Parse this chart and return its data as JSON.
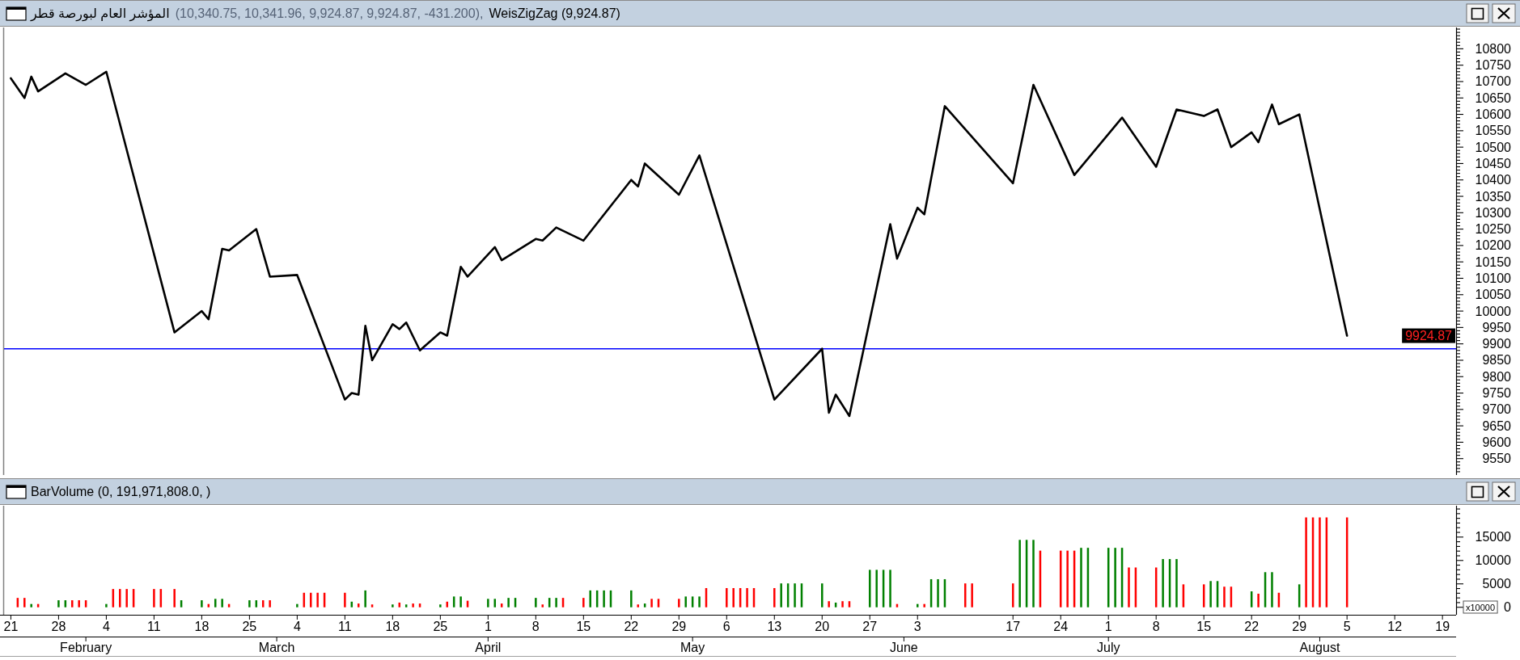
{
  "chart_data": [
    {
      "type": "line",
      "title": "المؤشر العام لبورصة قطر",
      "subtitle": "(10,340.75, 10,341.96, 9,924.87, 9,924.87, -431.200),",
      "series": [
        {
          "name": "WeisZigZag (9,924.87)",
          "color": "#000000",
          "x": [
            "--01-21",
            "--01-23",
            "--01-24",
            "--01-25",
            "--01-29",
            "--02-01",
            "--02-04",
            "--02-14",
            "--02-18",
            "--02-19",
            "--02-21",
            "--02-22",
            "--02-26",
            "--02-28",
            "--03-04",
            "--03-11",
            "--03-12",
            "--03-13",
            "--03-14",
            "--03-15",
            "--03-18",
            "--03-19",
            "--03-20",
            "--03-22",
            "--03-25",
            "--03-26",
            "--03-28",
            "--03-29",
            "--04-02",
            "--04-03",
            "--04-08",
            "--04-09",
            "--04-11",
            "--04-15",
            "--04-22",
            "--04-23",
            "--04-24",
            "--04-29",
            "--05-02",
            "--05-13",
            "--05-20",
            "--05-21",
            "--05-22",
            "--05-24",
            "--05-30",
            "--05-31",
            "--06-03",
            "--06-04",
            "--06-07",
            "--06-17",
            "--06-20",
            "--06-26",
            "--07-03",
            "--07-08",
            "--07-11",
            "--07-15",
            "--07-17",
            "--07-19",
            "--07-22",
            "--07-23",
            "--07-25",
            "--07-26",
            "--07-29",
            "--08-05"
          ],
          "values": [
            10710,
            10650,
            10715,
            10670,
            10725,
            10690,
            10730,
            9935,
            10000,
            9975,
            10190,
            10185,
            10250,
            10105,
            10110,
            9730,
            9750,
            9745,
            9955,
            9850,
            9960,
            9945,
            9965,
            9880,
            9935,
            9925,
            10135,
            10105,
            10195,
            10155,
            10220,
            10215,
            10255,
            10215,
            10400,
            10380,
            10450,
            10355,
            10475,
            9730,
            9885,
            9690,
            9745,
            9680,
            10265,
            10160,
            10315,
            10295,
            10625,
            10390,
            10690,
            10415,
            10590,
            10440,
            10615,
            10595,
            10615,
            10500,
            10545,
            10515,
            10630,
            10570,
            10600,
            9924.87
          ]
        }
      ],
      "xlim": [
        "--01-20",
        "--08-21"
      ],
      "ylim": [
        9500,
        10865
      ],
      "yticks": [
        {
          "value": 9510,
          "label": null
        },
        {
          "value": 9520,
          "label": null
        },
        {
          "value": 9530,
          "label": null
        },
        {
          "value": 9540,
          "label": null
        },
        9550,
        {
          "value": 9560,
          "label": null
        },
        {
          "value": 9570,
          "label": null
        },
        {
          "value": 9580,
          "label": null
        },
        {
          "value": 9590,
          "label": null
        },
        9600,
        {
          "value": 9610,
          "label": null
        },
        {
          "value": 9620,
          "label": null
        },
        {
          "value": 9630,
          "label": null
        },
        {
          "value": 9640,
          "label": null
        },
        9650,
        {
          "value": 9660,
          "label": null
        },
        {
          "value": 9670,
          "label": null
        },
        {
          "value": 9680,
          "label": null
        },
        {
          "value": 9690,
          "label": null
        },
        9700,
        {
          "value": 9710,
          "label": null
        },
        {
          "value": 9720,
          "label": null
        },
        {
          "value": 9730,
          "label": null
        },
        {
          "value": 9740,
          "label": null
        },
        9750,
        {
          "value": 9760,
          "label": null
        },
        {
          "value": 9770,
          "label": null
        },
        {
          "value": 9780,
          "label": null
        },
        {
          "value": 9790,
          "label": null
        },
        9800,
        {
          "value": 9810,
          "label": null
        },
        {
          "value": 9820,
          "label": null
        },
        {
          "value": 9830,
          "label": null
        },
        {
          "value": 9840,
          "label": null
        },
        9850,
        {
          "value": 9860,
          "label": null
        },
        {
          "value": 9870,
          "label": null
        },
        {
          "value": 9880,
          "label": null
        },
        {
          "value": 9890,
          "label": null
        },
        9900,
        {
          "value": 9910,
          "label": null
        },
        {
          "value": 9920,
          "label": null
        },
        {
          "value": 9930,
          "label": null
        },
        {
          "value": 9940,
          "label": null
        },
        9950,
        {
          "value": 9960,
          "label": null
        },
        {
          "value": 9970,
          "label": null
        },
        {
          "value": 9980,
          "label": null
        },
        {
          "value": 9990,
          "label": null
        },
        10000,
        {
          "value": 10010,
          "label": null
        },
        {
          "value": 10020,
          "label": null
        },
        {
          "value": 10030,
          "label": null
        },
        {
          "value": 10040,
          "label": null
        },
        10050,
        {
          "value": 10060,
          "label": null
        },
        {
          "value": 10070,
          "label": null
        },
        {
          "value": 10080,
          "label": null
        },
        {
          "value": 10090,
          "label": null
        },
        10100,
        {
          "value": 10110,
          "label": null
        },
        {
          "value": 10120,
          "label": null
        },
        {
          "value": 10130,
          "label": null
        },
        {
          "value": 10140,
          "label": null
        },
        10150,
        {
          "value": 10160,
          "label": null
        },
        {
          "value": 10170,
          "label": null
        },
        {
          "value": 10180,
          "label": null
        },
        {
          "value": 10190,
          "label": null
        },
        10200,
        {
          "value": 10210,
          "label": null
        },
        {
          "value": 10220,
          "label": null
        },
        {
          "value": 10230,
          "label": null
        },
        {
          "value": 10240,
          "label": null
        },
        10250,
        {
          "value": 10260,
          "label": null
        },
        {
          "value": 10270,
          "label": null
        },
        {
          "value": 10280,
          "label": null
        },
        {
          "value": 10290,
          "label": null
        },
        10300,
        {
          "value": 10310,
          "label": null
        },
        {
          "value": 10320,
          "label": null
        },
        {
          "value": 10330,
          "label": null
        },
        {
          "value": 10340,
          "label": null
        },
        10350,
        {
          "value": 10360,
          "label": null
        },
        {
          "value": 10370,
          "label": null
        },
        {
          "value": 10380,
          "label": null
        },
        {
          "value": 10390,
          "label": null
        },
        10400,
        {
          "value": 10410,
          "label": null
        },
        {
          "value": 10420,
          "label": null
        },
        {
          "value": 10430,
          "label": null
        },
        {
          "value": 10440,
          "label": null
        },
        10450,
        {
          "value": 10460,
          "label": null
        },
        {
          "value": 10470,
          "label": null
        },
        {
          "value": 10480,
          "label": null
        },
        {
          "value": 10490,
          "label": null
        },
        10500,
        {
          "value": 10510,
          "label": null
        },
        {
          "value": 10520,
          "label": null
        },
        {
          "value": 10530,
          "label": null
        },
        {
          "value": 10540,
          "label": null
        },
        10550,
        {
          "value": 10560,
          "label": null
        },
        {
          "value": 10570,
          "label": null
        },
        {
          "value": 10580,
          "label": null
        },
        {
          "value": 10590,
          "label": null
        },
        10600,
        {
          "value": 10610,
          "label": null
        },
        {
          "value": 10620,
          "label": null
        },
        {
          "value": 10630,
          "label": null
        },
        {
          "value": 10640,
          "label": null
        },
        10650,
        {
          "value": 10660,
          "label": null
        },
        {
          "value": 10670,
          "label": null
        },
        {
          "value": 10680,
          "label": null
        },
        {
          "value": 10690,
          "label": null
        },
        10700,
        {
          "value": 10710,
          "label": null
        },
        {
          "value": 10720,
          "label": null
        },
        {
          "value": 10730,
          "label": null
        },
        {
          "value": 10740,
          "label": null
        },
        10750,
        {
          "value": 10760,
          "label": null
        },
        {
          "value": 10770,
          "label": null
        },
        {
          "value": 10780,
          "label": null
        },
        {
          "value": 10790,
          "label": null
        },
        10800,
        {
          "value": 10810,
          "label": null
        },
        {
          "value": 10820,
          "label": null
        },
        {
          "value": 10830,
          "label": null
        },
        {
          "value": 10840,
          "label": null
        },
        {
          "value": 10850,
          "label": null
        },
        {
          "value": 10860,
          "label": null
        }
      ],
      "ref_lines": [
        {
          "axis": "y",
          "value": 9885,
          "color": "#0000ff"
        }
      ],
      "annotations": [
        "9924.87"
      ],
      "tick_labels": "y",
      "legend": "top left"
    },
    {
      "type": "bar",
      "title": "BarVolume (0, 191,971,808.0, )",
      "ylabel": "x10000",
      "x": [
        "--01-22",
        "--01-23",
        "--01-24",
        "--01-25",
        "--01-28",
        "--01-29",
        "--01-30",
        "--01-31",
        "--02-01",
        "--02-04",
        "--02-05",
        "--02-06",
        "--02-07",
        "--02-08",
        "--02-11",
        "--02-12",
        "--02-14",
        "--02-15",
        "--02-18",
        "--02-19",
        "--02-20",
        "--02-21",
        "--02-22",
        "--02-25",
        "--02-26",
        "--02-27",
        "--02-28",
        "--03-04",
        "--03-05",
        "--03-06",
        "--03-07",
        "--03-08",
        "--03-11",
        "--03-12",
        "--03-13",
        "--03-14",
        "--03-15",
        "--03-18",
        "--03-19",
        "--03-20",
        "--03-21",
        "--03-22",
        "--03-25",
        "--03-26",
        "--03-27",
        "--03-28",
        "--03-29",
        "--04-01",
        "--04-02",
        "--04-03",
        "--04-04",
        "--04-05",
        "--04-08",
        "--04-09",
        "--04-10",
        "--04-11",
        "--04-12",
        "--04-15",
        "--04-16",
        "--04-17",
        "--04-18",
        "--04-19",
        "--04-22",
        "--04-23",
        "--04-24",
        "--04-25",
        "--04-26",
        "--04-29",
        "--04-30",
        "--05-01",
        "--05-02",
        "--05-03",
        "--05-06",
        "--05-07",
        "--05-08",
        "--05-09",
        "--05-10",
        "--05-13",
        "--05-14",
        "--05-15",
        "--05-16",
        "--05-17",
        "--05-20",
        "--05-21",
        "--05-22",
        "--05-23",
        "--05-24",
        "--05-27",
        "--05-28",
        "--05-29",
        "--05-30",
        "--05-31",
        "--06-03",
        "--06-04",
        "--06-05",
        "--06-06",
        "--06-07",
        "--06-10",
        "--06-11",
        "--06-17",
        "--06-18",
        "--06-19",
        "--06-20",
        "--06-21",
        "--06-24",
        "--06-25",
        "--06-26",
        "--06-27",
        "--06-28",
        "--07-01",
        "--07-02",
        "--07-03",
        "--07-04",
        "--07-05",
        "--07-08",
        "--07-09",
        "--07-10",
        "--07-11",
        "--07-12",
        "--07-15",
        "--07-16",
        "--07-17",
        "--07-18",
        "--07-19",
        "--07-22",
        "--07-23",
        "--07-24",
        "--07-25",
        "--07-26",
        "--07-29",
        "--07-30",
        "--07-31",
        "--08-01",
        "--08-02",
        "--08-05"
      ],
      "values": [
        2000,
        2000,
        700,
        700,
        1500,
        1500,
        1500,
        1500,
        1500,
        700,
        3900,
        3900,
        3900,
        3900,
        3900,
        3900,
        3900,
        1500,
        1500,
        700,
        1800,
        1800,
        700,
        1500,
        1500,
        1500,
        1500,
        700,
        3100,
        3100,
        3100,
        3100,
        3100,
        1200,
        800,
        3600,
        600,
        600,
        1000,
        600,
        800,
        800,
        600,
        1200,
        2300,
        2300,
        1400,
        1800,
        1800,
        800,
        2000,
        2000,
        2000,
        600,
        2000,
        2000,
        2000,
        2000,
        3600,
        3600,
        3600,
        3600,
        3600,
        600,
        800,
        1800,
        1800,
        1800,
        2300,
        2300,
        2300,
        4100,
        4100,
        4100,
        4100,
        4100,
        4100,
        4100,
        5100,
        5100,
        5100,
        5100,
        5100,
        1300,
        1000,
        1300,
        1300,
        8000,
        8000,
        8000,
        8000,
        700,
        700,
        700,
        6000,
        6000,
        6000,
        5100,
        5100,
        5100,
        14400,
        14400,
        14400,
        12100,
        12100,
        12100,
        12100,
        12700,
        12700,
        12700,
        12700,
        12700,
        8500,
        8500,
        8500,
        10300,
        10300,
        10300,
        4900,
        4900,
        5600,
        5600,
        4400,
        4400,
        3400,
        2900,
        7500,
        7500,
        3100,
        4900,
        19197.1808,
        19197.1808,
        19197.1808,
        19197.1808,
        19197.1808
      ],
      "colors": [
        "#ff0000",
        "#ff0000",
        "#008000",
        "#ff0000",
        "#008000",
        "#008000",
        "#ff0000",
        "#ff0000",
        "#ff0000",
        "#008000",
        "#ff0000",
        "#ff0000",
        "#ff0000",
        "#ff0000",
        "#ff0000",
        "#ff0000",
        "#ff0000",
        "#008000",
        "#008000",
        "#ff0000",
        "#008000",
        "#008000",
        "#ff0000",
        "#008000",
        "#008000",
        "#ff0000",
        "#ff0000",
        "#008000",
        "#ff0000",
        "#ff0000",
        "#ff0000",
        "#ff0000",
        "#ff0000",
        "#008000",
        "#ff0000",
        "#008000",
        "#ff0000",
        "#008000",
        "#ff0000",
        "#008000",
        "#ff0000",
        "#ff0000",
        "#008000",
        "#ff0000",
        "#008000",
        "#008000",
        "#ff0000",
        "#008000",
        "#008000",
        "#ff0000",
        "#008000",
        "#008000",
        "#008000",
        "#ff0000",
        "#008000",
        "#008000",
        "#ff0000",
        "#ff0000",
        "#008000",
        "#008000",
        "#008000",
        "#008000",
        "#008000",
        "#ff0000",
        "#008000",
        "#ff0000",
        "#ff0000",
        "#ff0000",
        "#008000",
        "#008000",
        "#008000",
        "#ff0000",
        "#ff0000",
        "#ff0000",
        "#ff0000",
        "#ff0000",
        "#ff0000",
        "#ff0000",
        "#008000",
        "#008000",
        "#008000",
        "#008000",
        "#008000",
        "#ff0000",
        "#008000",
        "#ff0000",
        "#ff0000",
        "#008000",
        "#008000",
        "#008000",
        "#008000",
        "#ff0000",
        "#008000",
        "#ff0000",
        "#008000",
        "#008000",
        "#008000",
        "#ff0000",
        "#ff0000",
        "#ff0000",
        "#008000",
        "#008000",
        "#008000",
        "#ff0000",
        "#ff0000",
        "#ff0000",
        "#ff0000",
        "#008000",
        "#008000",
        "#008000",
        "#008000",
        "#008000",
        "#ff0000",
        "#ff0000",
        "#ff0000",
        "#008000",
        "#008000",
        "#008000",
        "#ff0000",
        "#ff0000",
        "#008000",
        "#008000",
        "#ff0000",
        "#ff0000",
        "#008000",
        "#ff0000",
        "#008000",
        "#008000",
        "#ff0000",
        "#008000",
        "#ff0000",
        "#ff0000",
        "#ff0000",
        "#ff0000",
        "#ff0000"
      ],
      "xlim": [
        "--01-20",
        "--08-21"
      ],
      "xticks": [
        {
          "value": "--01-21",
          "label": "21"
        },
        {
          "value": "--01-28",
          "label": "28"
        },
        {
          "value": "--02-04",
          "label": "4"
        },
        {
          "value": "--02-11",
          "label": "11"
        },
        {
          "value": "--02-18",
          "label": "18"
        },
        {
          "value": "--02-25",
          "label": "25"
        },
        {
          "value": "--03-04",
          "label": "4"
        },
        {
          "value": "--03-11",
          "label": "11"
        },
        {
          "value": "--03-18",
          "label": "18"
        },
        {
          "value": "--03-25",
          "label": "25"
        },
        {
          "value": "--04-01",
          "label": "1"
        },
        {
          "value": "--04-08",
          "label": "8"
        },
        {
          "value": "--04-15",
          "label": "15"
        },
        {
          "value": "--04-22",
          "label": "22"
        },
        {
          "value": "--04-29",
          "label": "29"
        },
        {
          "value": "--05-06",
          "label": "6"
        },
        {
          "value": "--05-13",
          "label": "13"
        },
        {
          "value": "--05-20",
          "label": "20"
        },
        {
          "value": "--05-27",
          "label": "27"
        },
        {
          "value": "--06-03",
          "label": "3"
        },
        {
          "value": "--06-17",
          "label": "17"
        },
        {
          "value": "--06-24",
          "label": "24"
        },
        {
          "value": "--07-01",
          "label": "1"
        },
        {
          "value": "--07-08",
          "label": "8"
        },
        {
          "value": "--07-15",
          "label": "15"
        },
        {
          "value": "--07-22",
          "label": "22"
        },
        {
          "value": "--07-29",
          "label": "29"
        },
        {
          "value": "--08-05",
          "label": "5"
        },
        {
          "value": "--08-12",
          "label": "12"
        },
        {
          "value": "--08-19",
          "label": "19"
        }
      ],
      "x2lim": [
        "--01-20",
        "--08-21"
      ],
      "x2ticks": [
        {
          "value": "--02-01",
          "label": "February"
        },
        {
          "value": "--03-01",
          "label": "March"
        },
        {
          "value": "--04-01",
          "label": "April"
        },
        {
          "value": "--05-01",
          "label": "May"
        },
        {
          "value": "--06-01",
          "label": "June"
        },
        {
          "value": "--07-01",
          "label": "July"
        },
        {
          "value": "--08-01",
          "label": "August"
        }
      ],
      "ylim": [
        -1600,
        21700
      ],
      "yticks": [
        0,
        {
          "value": 1000,
          "label": null
        },
        {
          "value": 2000,
          "label": null
        },
        {
          "value": 3000,
          "label": null
        },
        {
          "value": 4000,
          "label": null
        },
        5000,
        {
          "value": 6000,
          "label": null
        },
        {
          "value": 7000,
          "label": null
        },
        {
          "value": 8000,
          "label": null
        },
        {
          "value": 9000,
          "label": null
        },
        10000,
        {
          "value": 11000,
          "label": null
        },
        {
          "value": 12000,
          "label": null
        },
        {
          "value": 13000,
          "label": null
        },
        {
          "value": 14000,
          "label": null
        },
        15000,
        {
          "value": 16000,
          "label": null
        },
        {
          "value": 17000,
          "label": null
        },
        {
          "value": 18000,
          "label": null
        },
        {
          "value": 19000,
          "label": null
        },
        {
          "value": 20000,
          "label": null
        },
        {
          "value": 21000,
          "label": null
        }
      ]
    }
  ]
}
